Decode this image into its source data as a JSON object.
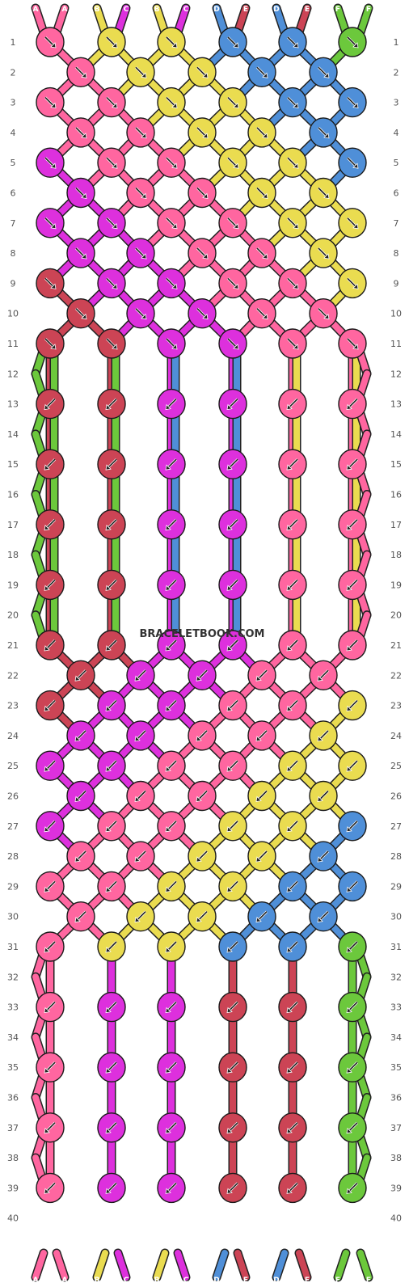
{
  "watermark": "BRACELETBOOK.COM",
  "colors": {
    "A": "#ff66a0",
    "B": "#eadc50",
    "C": "#dd30dd",
    "D": "#4f8fd8",
    "E": "#cc4455",
    "F": "#6cc83c"
  },
  "top_labels": [
    "A",
    "A",
    "B",
    "C",
    "B",
    "C",
    "D",
    "E",
    "D",
    "E",
    "F",
    "F"
  ],
  "bottom_labels": [
    "A",
    "A",
    "B",
    "C",
    "B",
    "C",
    "D",
    "E",
    "D",
    "E",
    "F",
    "F"
  ],
  "row_numbers": [
    "1",
    "2",
    "3",
    "4",
    "5",
    "6",
    "7",
    "8",
    "9",
    "10",
    "11",
    "12",
    "13",
    "14",
    "15",
    "16",
    "17",
    "18",
    "19",
    "20",
    "21",
    "22",
    "23",
    "24",
    "25",
    "26",
    "27",
    "28",
    "29",
    "30",
    "31",
    "32",
    "33",
    "34",
    "35",
    "36",
    "37",
    "38",
    "39",
    "40"
  ],
  "legend": {
    "forward_knot": "forward-knot-arrow-icon",
    "backward_knot": "backward-knot-arrow-icon"
  }
}
